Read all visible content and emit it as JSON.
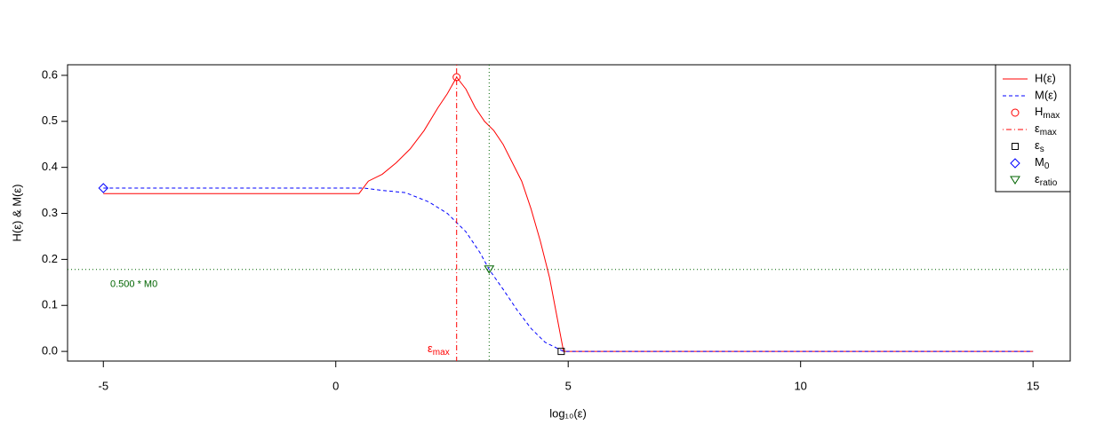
{
  "chart_data": {
    "type": "line",
    "x_label": "log₁₀(ε)",
    "y_label": "H(ε)  &  M(ε)",
    "xlim": [
      -5.77,
      15.8
    ],
    "ylim": [
      -0.021,
      0.623
    ],
    "xticks": [
      -5,
      0,
      5,
      10,
      15
    ],
    "yticks": [
      {
        "value": 0,
        "label": "0.0"
      },
      0.1,
      0.2,
      0.3,
      0.4,
      0.5,
      0.6
    ],
    "series": [
      {
        "name": "H(ε)",
        "color": "#ff0000",
        "dash": "solid",
        "x": [
          -5,
          0.5,
          0.7,
          1.0,
          1.3,
          1.6,
          1.9,
          2.2,
          2.4,
          2.6,
          2.8,
          3.0,
          3.2,
          3.4,
          3.6,
          3.8,
          4.0,
          4.2,
          4.4,
          4.6,
          4.75,
          4.9,
          15
        ],
        "values": [
          0.343,
          0.343,
          0.37,
          0.385,
          0.41,
          0.44,
          0.48,
          0.53,
          0.56,
          0.596,
          0.57,
          0.53,
          0.5,
          0.48,
          0.45,
          0.41,
          0.37,
          0.31,
          0.24,
          0.16,
          0.08,
          0,
          0
        ]
      },
      {
        "name": "M(ε)",
        "color": "#0000ff",
        "dash": "dashed",
        "x": [
          -5,
          0.6,
          1.0,
          1.5,
          2.0,
          2.4,
          2.8,
          3.1,
          3.3,
          3.6,
          3.9,
          4.2,
          4.5,
          4.8,
          4.9,
          15
        ],
        "values": [
          0.355,
          0.355,
          0.35,
          0.345,
          0.325,
          0.3,
          0.26,
          0.215,
          0.178,
          0.135,
          0.09,
          0.05,
          0.02,
          0.005,
          0,
          0
        ]
      }
    ],
    "markers": [
      {
        "main": "H",
        "sub": "max",
        "shape": "circle",
        "color": "#ff0000",
        "x": 2.6,
        "y": 0.596
      },
      {
        "main": "ε",
        "sub": "max",
        "shape": "vline",
        "color": "#ff0000",
        "x": 2.6
      },
      {
        "main": "ε",
        "sub": "s",
        "shape": "square",
        "color": "#000000",
        "x": 4.85,
        "y": 0
      },
      {
        "main": "M",
        "sub": "0",
        "shape": "diamond",
        "color": "#0000ff",
        "x": -5,
        "y": 0.355
      },
      {
        "main": "ε",
        "sub": "ratio",
        "shape": "triangle",
        "color": "#006400",
        "x": 3.3,
        "y": 0.178
      }
    ],
    "ratio_line": {
      "y": 0.178,
      "label": "0.500 * M0",
      "color": "#006400"
    },
    "emax_annotation": {
      "main": "ε",
      "sub": "max"
    },
    "legend": "top-right"
  }
}
